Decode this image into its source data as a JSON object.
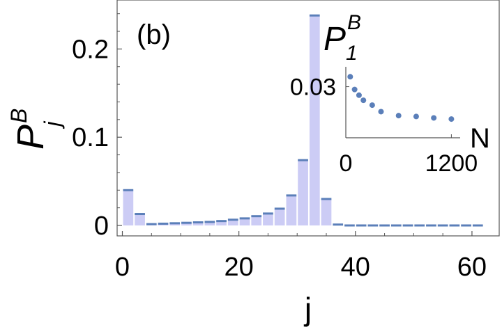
{
  "chart_data": [
    {
      "type": "bar",
      "panel_label": "(b)",
      "xlabel": "j",
      "ylabel_base": "P",
      "ylabel_sub": "j",
      "ylabel_sup": "B",
      "xlim": [
        0,
        63
      ],
      "ylim": [
        0,
        0.25
      ],
      "xticks": [
        0,
        20,
        40,
        60
      ],
      "xtick_labels": [
        "0",
        "20",
        "40",
        "60"
      ],
      "yticks": [
        0,
        0.1,
        0.2
      ],
      "ytick_labels": [
        "0",
        "0.1",
        "0.2"
      ],
      "x": [
        1,
        3,
        5,
        7,
        9,
        11,
        13,
        15,
        17,
        19,
        21,
        23,
        25,
        27,
        29,
        31,
        33,
        35,
        37,
        39,
        41,
        43,
        45,
        47,
        49,
        51,
        53,
        55,
        57,
        59,
        61
      ],
      "values": [
        0.04,
        0.013,
        0.0015,
        0.002,
        0.0025,
        0.003,
        0.0035,
        0.004,
        0.005,
        0.0065,
        0.008,
        0.0105,
        0.0135,
        0.019,
        0.034,
        0.074,
        0.238,
        0.03,
        0.001,
        0,
        0,
        0,
        0,
        0,
        0,
        0,
        0,
        0,
        0,
        0,
        0
      ],
      "fill_color": "#ccccf5",
      "marker_color": "#5b7fb9"
    },
    {
      "type": "scatter",
      "inset": true,
      "title_base": "P",
      "title_sub": "1",
      "title_sup": "B",
      "xlabel": "N",
      "xlim": [
        0,
        1300
      ],
      "ylim": [
        0.012,
        0.037
      ],
      "xticks": [
        0,
        1200
      ],
      "xtick_labels": [
        "0",
        "1200"
      ],
      "yticks": [
        0.03
      ],
      "ytick_labels": [
        "0.03"
      ],
      "x": [
        50,
        100,
        150,
        200,
        300,
        400,
        600,
        800,
        1000,
        1200
      ],
      "y": [
        0.0335,
        0.029,
        0.027,
        0.0252,
        0.0235,
        0.0212,
        0.0198,
        0.0195,
        0.019,
        0.0186
      ],
      "marker_color": "#5b7fb9"
    }
  ]
}
